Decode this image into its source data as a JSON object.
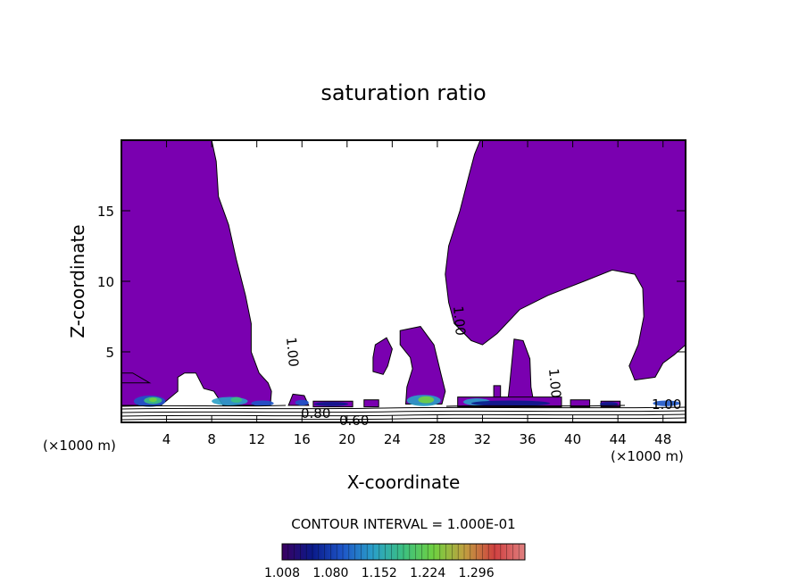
{
  "chart_data": {
    "type": "heatmap",
    "title": "saturation ratio",
    "xlabel": "X-coordinate",
    "ylabel": "Z-coordinate",
    "x_unit_left": "(×1000 m)",
    "x_unit_right": "(×1000 m)",
    "xlim": [
      0,
      50
    ],
    "ylim": [
      0,
      20
    ],
    "xticks": [
      4,
      8,
      12,
      16,
      20,
      24,
      28,
      32,
      36,
      40,
      44,
      48
    ],
    "yticks": [
      5,
      10,
      15
    ],
    "contour_interval_text": "CONTOUR INTERVAL = 1.000E-01",
    "contour_labels": [
      "1.00",
      "1.00",
      "1.00",
      "1.00",
      "0.80",
      "0.60"
    ],
    "colorbar": {
      "ticks": [
        1.008,
        1.08,
        1.152,
        1.224,
        1.296
      ],
      "tick_labels": [
        "1.008",
        "1.080",
        "1.152",
        "1.224",
        "1.296"
      ],
      "colors": [
        "#3a0060",
        "#0a1a8a",
        "#1e56c8",
        "#2aa0c8",
        "#3cc080",
        "#70d040",
        "#c0a040",
        "#d04040",
        "#e08080"
      ]
    },
    "fill_color": "#7a00b0",
    "regions_main": [
      [
        [
          0.0,
          20.0
        ],
        [
          8.0,
          20.0
        ],
        [
          8.4,
          18.5
        ],
        [
          8.6,
          16.0
        ],
        [
          9.5,
          14.0
        ],
        [
          10.2,
          11.5
        ],
        [
          11.0,
          9.0
        ],
        [
          11.5,
          7.0
        ],
        [
          11.5,
          5.0
        ],
        [
          12.2,
          3.5
        ],
        [
          13.0,
          2.8
        ],
        [
          13.3,
          2.2
        ],
        [
          13.2,
          1.2
        ],
        [
          9.0,
          1.2
        ],
        [
          8.2,
          2.2
        ],
        [
          7.3,
          2.4
        ],
        [
          6.6,
          3.5
        ],
        [
          5.6,
          3.5
        ],
        [
          5.0,
          3.2
        ],
        [
          5.0,
          2.2
        ],
        [
          3.5,
          1.2
        ],
        [
          0.0,
          1.2
        ],
        [
          0.0,
          3.5
        ],
        [
          1.0,
          3.5
        ],
        [
          2.5,
          2.8
        ],
        [
          0.0,
          2.8
        ]
      ],
      [
        [
          31.8,
          20.0
        ],
        [
          50.0,
          20.0
        ],
        [
          50.0,
          5.5
        ],
        [
          49.0,
          4.8
        ],
        [
          48.0,
          4.2
        ],
        [
          47.3,
          3.2
        ],
        [
          45.5,
          3.0
        ],
        [
          45.0,
          4.0
        ],
        [
          45.8,
          5.5
        ],
        [
          46.3,
          7.5
        ],
        [
          46.2,
          9.5
        ],
        [
          45.5,
          10.5
        ],
        [
          43.5,
          10.8
        ],
        [
          41.0,
          10.0
        ],
        [
          37.8,
          9.0
        ],
        [
          35.3,
          8.0
        ],
        [
          33.3,
          6.3
        ],
        [
          32.0,
          5.5
        ],
        [
          31.0,
          5.8
        ],
        [
          29.5,
          7.0
        ],
        [
          29.0,
          8.5
        ],
        [
          28.7,
          10.5
        ],
        [
          29.0,
          12.5
        ],
        [
          30.0,
          15.0
        ],
        [
          30.8,
          17.5
        ],
        [
          31.3,
          19.0
        ]
      ],
      [
        [
          22.5,
          5.5
        ],
        [
          23.5,
          6.0
        ],
        [
          24.0,
          5.2
        ],
        [
          23.6,
          4.0
        ],
        [
          23.2,
          3.4
        ],
        [
          22.3,
          3.6
        ],
        [
          22.3,
          4.6
        ]
      ],
      [
        [
          24.7,
          6.5
        ],
        [
          26.5,
          6.8
        ],
        [
          27.7,
          5.5
        ],
        [
          28.3,
          3.5
        ],
        [
          28.7,
          2.2
        ],
        [
          28.4,
          1.3
        ],
        [
          25.2,
          1.3
        ],
        [
          25.3,
          2.5
        ],
        [
          25.8,
          3.8
        ],
        [
          25.6,
          4.6
        ],
        [
          24.7,
          5.5
        ]
      ],
      [
        [
          34.8,
          5.9
        ],
        [
          35.6,
          5.8
        ],
        [
          36.2,
          4.5
        ],
        [
          36.3,
          2.5
        ],
        [
          36.6,
          1.2
        ],
        [
          34.2,
          1.2
        ],
        [
          34.4,
          2.6
        ]
      ]
    ],
    "regions_small": [
      [
        [
          15.2,
          2.0
        ],
        [
          16.2,
          1.9
        ],
        [
          16.6,
          1.2
        ],
        [
          14.8,
          1.2
        ]
      ],
      [
        [
          17.0,
          1.5
        ],
        [
          20.5,
          1.5
        ],
        [
          20.5,
          1.1
        ],
        [
          17.0,
          1.1
        ]
      ],
      [
        [
          21.5,
          1.6
        ],
        [
          22.8,
          1.6
        ],
        [
          22.8,
          1.1
        ],
        [
          21.5,
          1.1
        ]
      ],
      [
        [
          29.8,
          1.8
        ],
        [
          39.0,
          1.8
        ],
        [
          39.0,
          1.1
        ],
        [
          29.8,
          1.1
        ]
      ],
      [
        [
          33.0,
          2.6
        ],
        [
          33.6,
          2.6
        ],
        [
          33.6,
          1.8
        ],
        [
          33.0,
          1.8
        ]
      ],
      [
        [
          39.8,
          1.6
        ],
        [
          41.5,
          1.6
        ],
        [
          41.5,
          1.1
        ],
        [
          39.8,
          1.1
        ]
      ],
      [
        [
          42.5,
          1.5
        ],
        [
          44.2,
          1.5
        ],
        [
          44.2,
          1.1
        ],
        [
          42.5,
          1.1
        ]
      ]
    ]
  }
}
